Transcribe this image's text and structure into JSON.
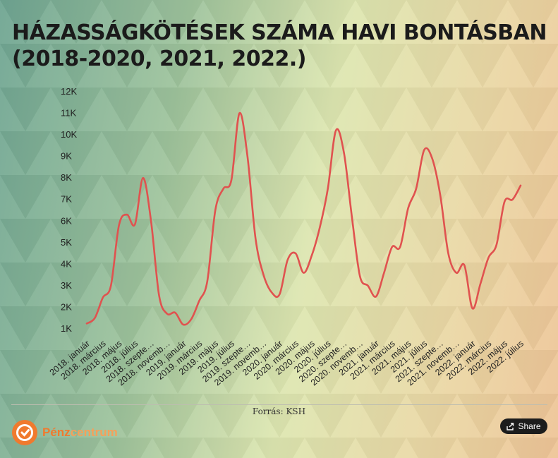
{
  "title": "HÁZASSÁGKÖTÉSEK SZÁMA HAVI BONTÁSBAN (2018-2020, 2021, 2022.)",
  "source": "Forrás: KSH",
  "brand": {
    "name_part1": "Pénz",
    "name_part2": "centrum",
    "color": "#f07a2e",
    "icon": "pig-logo-icon"
  },
  "share_label": "Share",
  "share_icon": "share-icon",
  "colors": {
    "line": "#e0524f",
    "text": "#1b1b1b"
  },
  "chart_data": {
    "type": "line",
    "title": "HÁZASSÁGKÖTÉSEK SZÁMA HAVI BONTÁSBAN (2018-2020, 2021, 2022.)",
    "xlabel": "",
    "ylabel": "",
    "ylim": [
      1000,
      12000
    ],
    "yticks": [
      1000,
      2000,
      3000,
      4000,
      5000,
      6000,
      7000,
      8000,
      9000,
      10000,
      11000,
      12000
    ],
    "ytick_labels": [
      "1K",
      "2K",
      "3K",
      "4K",
      "5K",
      "6K",
      "7K",
      "8K",
      "9K",
      "10K",
      "11K",
      "12K"
    ],
    "tick_labels": [
      "2018. január",
      "2018. március",
      "2018. május",
      "2018. július",
      "2018. szepte…",
      "2018. novemb…",
      "2019. január",
      "2019. március",
      "2019. május",
      "2019. július",
      "2019. szepte…",
      "2019. novemb…",
      "2020. január",
      "2020. március",
      "2020. május",
      "2020. július",
      "2020. szepte…",
      "2020. novemb…",
      "2021. január",
      "2021. március",
      "2021. május",
      "2021. július",
      "2021. szepte…",
      "2021. novemb…",
      "2022. január",
      "2022. március",
      "2022. május",
      "2022. július"
    ],
    "grid": false,
    "legend": "none",
    "series": [
      {
        "values": [
          1250,
          1500,
          2450,
          3000,
          5800,
          6300,
          5850,
          8000,
          6000,
          2550,
          1700,
          1750,
          1200,
          1450,
          2300,
          3200,
          6500,
          7500,
          7900,
          11000,
          9000,
          5200,
          3500,
          2700,
          2600,
          4200,
          4500,
          3600,
          4400,
          5700,
          7500,
          10200,
          9200,
          6200,
          3450,
          3000,
          2500,
          3600,
          4800,
          4800,
          6600,
          7500,
          9300,
          8900,
          7200,
          4500,
          3600,
          3950,
          1950,
          3100,
          4300,
          4900,
          6900,
          7000,
          7650
        ]
      }
    ]
  }
}
